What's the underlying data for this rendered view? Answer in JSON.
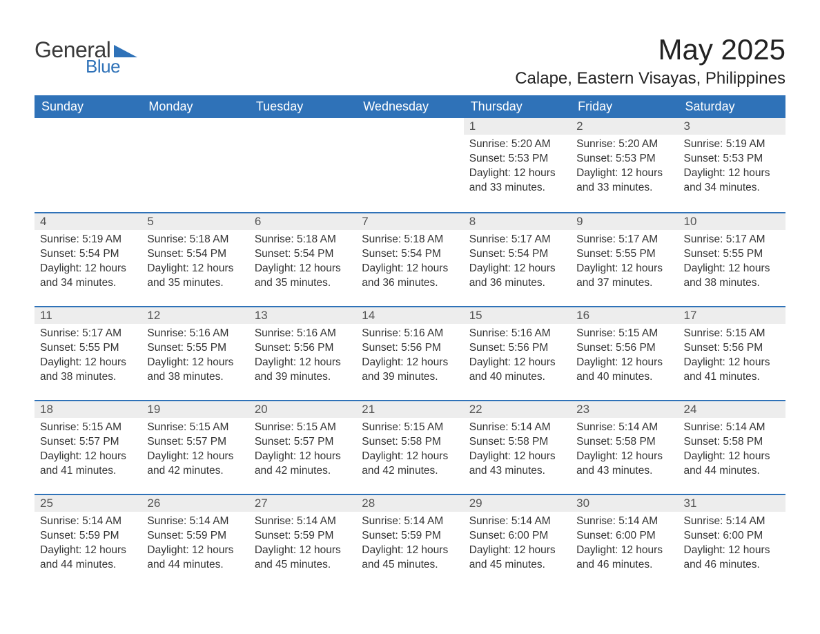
{
  "logo": {
    "text1": "General",
    "text2": "Blue",
    "triangle_color": "#2f72b8"
  },
  "title": "May 2025",
  "location": "Calape, Eastern Visayas, Philippines",
  "colors": {
    "header_bg": "#2f72b8",
    "header_text": "#ffffff",
    "daynum_bg": "#ededed",
    "daynum_border": "#2f72b8",
    "body_text": "#333333",
    "page_bg": "#ffffff"
  },
  "typography": {
    "title_fontsize": 42,
    "location_fontsize": 24,
    "header_fontsize": 18,
    "daynum_fontsize": 17,
    "body_fontsize": 15.5
  },
  "day_headers": [
    "Sunday",
    "Monday",
    "Tuesday",
    "Wednesday",
    "Thursday",
    "Friday",
    "Saturday"
  ],
  "weeks": [
    [
      null,
      null,
      null,
      null,
      {
        "n": "1",
        "sunrise": "5:20 AM",
        "sunset": "5:53 PM",
        "daylight_h": 12,
        "daylight_m": 33
      },
      {
        "n": "2",
        "sunrise": "5:20 AM",
        "sunset": "5:53 PM",
        "daylight_h": 12,
        "daylight_m": 33
      },
      {
        "n": "3",
        "sunrise": "5:19 AM",
        "sunset": "5:53 PM",
        "daylight_h": 12,
        "daylight_m": 34
      }
    ],
    [
      {
        "n": "4",
        "sunrise": "5:19 AM",
        "sunset": "5:54 PM",
        "daylight_h": 12,
        "daylight_m": 34
      },
      {
        "n": "5",
        "sunrise": "5:18 AM",
        "sunset": "5:54 PM",
        "daylight_h": 12,
        "daylight_m": 35
      },
      {
        "n": "6",
        "sunrise": "5:18 AM",
        "sunset": "5:54 PM",
        "daylight_h": 12,
        "daylight_m": 35
      },
      {
        "n": "7",
        "sunrise": "5:18 AM",
        "sunset": "5:54 PM",
        "daylight_h": 12,
        "daylight_m": 36
      },
      {
        "n": "8",
        "sunrise": "5:17 AM",
        "sunset": "5:54 PM",
        "daylight_h": 12,
        "daylight_m": 36
      },
      {
        "n": "9",
        "sunrise": "5:17 AM",
        "sunset": "5:55 PM",
        "daylight_h": 12,
        "daylight_m": 37
      },
      {
        "n": "10",
        "sunrise": "5:17 AM",
        "sunset": "5:55 PM",
        "daylight_h": 12,
        "daylight_m": 38
      }
    ],
    [
      {
        "n": "11",
        "sunrise": "5:17 AM",
        "sunset": "5:55 PM",
        "daylight_h": 12,
        "daylight_m": 38
      },
      {
        "n": "12",
        "sunrise": "5:16 AM",
        "sunset": "5:55 PM",
        "daylight_h": 12,
        "daylight_m": 38
      },
      {
        "n": "13",
        "sunrise": "5:16 AM",
        "sunset": "5:56 PM",
        "daylight_h": 12,
        "daylight_m": 39
      },
      {
        "n": "14",
        "sunrise": "5:16 AM",
        "sunset": "5:56 PM",
        "daylight_h": 12,
        "daylight_m": 39
      },
      {
        "n": "15",
        "sunrise": "5:16 AM",
        "sunset": "5:56 PM",
        "daylight_h": 12,
        "daylight_m": 40
      },
      {
        "n": "16",
        "sunrise": "5:15 AM",
        "sunset": "5:56 PM",
        "daylight_h": 12,
        "daylight_m": 40
      },
      {
        "n": "17",
        "sunrise": "5:15 AM",
        "sunset": "5:56 PM",
        "daylight_h": 12,
        "daylight_m": 41
      }
    ],
    [
      {
        "n": "18",
        "sunrise": "5:15 AM",
        "sunset": "5:57 PM",
        "daylight_h": 12,
        "daylight_m": 41
      },
      {
        "n": "19",
        "sunrise": "5:15 AM",
        "sunset": "5:57 PM",
        "daylight_h": 12,
        "daylight_m": 42
      },
      {
        "n": "20",
        "sunrise": "5:15 AM",
        "sunset": "5:57 PM",
        "daylight_h": 12,
        "daylight_m": 42
      },
      {
        "n": "21",
        "sunrise": "5:15 AM",
        "sunset": "5:58 PM",
        "daylight_h": 12,
        "daylight_m": 42
      },
      {
        "n": "22",
        "sunrise": "5:14 AM",
        "sunset": "5:58 PM",
        "daylight_h": 12,
        "daylight_m": 43
      },
      {
        "n": "23",
        "sunrise": "5:14 AM",
        "sunset": "5:58 PM",
        "daylight_h": 12,
        "daylight_m": 43
      },
      {
        "n": "24",
        "sunrise": "5:14 AM",
        "sunset": "5:58 PM",
        "daylight_h": 12,
        "daylight_m": 44
      }
    ],
    [
      {
        "n": "25",
        "sunrise": "5:14 AM",
        "sunset": "5:59 PM",
        "daylight_h": 12,
        "daylight_m": 44
      },
      {
        "n": "26",
        "sunrise": "5:14 AM",
        "sunset": "5:59 PM",
        "daylight_h": 12,
        "daylight_m": 44
      },
      {
        "n": "27",
        "sunrise": "5:14 AM",
        "sunset": "5:59 PM",
        "daylight_h": 12,
        "daylight_m": 45
      },
      {
        "n": "28",
        "sunrise": "5:14 AM",
        "sunset": "5:59 PM",
        "daylight_h": 12,
        "daylight_m": 45
      },
      {
        "n": "29",
        "sunrise": "5:14 AM",
        "sunset": "6:00 PM",
        "daylight_h": 12,
        "daylight_m": 45
      },
      {
        "n": "30",
        "sunrise": "5:14 AM",
        "sunset": "6:00 PM",
        "daylight_h": 12,
        "daylight_m": 46
      },
      {
        "n": "31",
        "sunrise": "5:14 AM",
        "sunset": "6:00 PM",
        "daylight_h": 12,
        "daylight_m": 46
      }
    ]
  ],
  "labels": {
    "sunrise_prefix": "Sunrise: ",
    "sunset_prefix": "Sunset: ",
    "daylight_prefix": "Daylight: ",
    "hours_word": " hours",
    "and_word": "and ",
    "minutes_word": " minutes."
  }
}
